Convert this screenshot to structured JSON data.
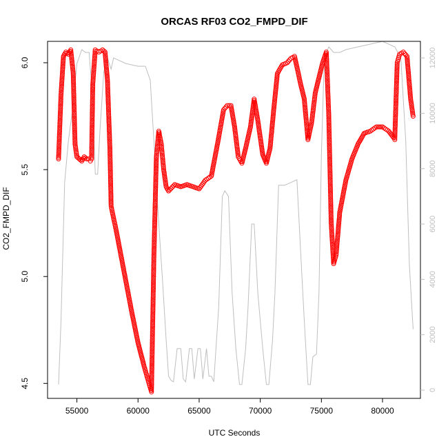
{
  "chart_data": {
    "type": "scatter",
    "title": "ORCAS RF03 CO2_FMPD_DIF",
    "xlabel": "UTC Seconds",
    "ylabel": "CO2_FMPD_DIF",
    "xlim": [
      52600,
      83100
    ],
    "ylim": [
      4.43,
      6.1
    ],
    "y2lim": [
      -300,
      12600
    ],
    "x_ticks": [
      55000,
      60000,
      65000,
      70000,
      75000,
      80000
    ],
    "y_ticks": [
      4.5,
      5.0,
      5.5,
      6.0
    ],
    "y2_ticks": [
      0,
      2000,
      4000,
      6000,
      8000,
      10000,
      12000
    ],
    "colors": {
      "points": "#ff0000",
      "altitude_line": "#bebebe",
      "axes": "#000000",
      "right_axis": "#bebebe"
    },
    "series": [
      {
        "style": "points",
        "axis": "left",
        "x": [
          53500,
          53700,
          53900,
          54100,
          54300,
          54500,
          54700,
          54850,
          55000,
          55200,
          55400,
          55600,
          55800,
          55950,
          56100,
          56200,
          56300,
          56500,
          56800,
          57100,
          57300,
          57500,
          57700,
          57800,
          57900,
          58200,
          58600,
          59000,
          59500,
          60000,
          60500,
          60900,
          61100,
          61300,
          61500,
          61700,
          61900,
          62100,
          62300,
          62500,
          63000,
          63500,
          64000,
          64500,
          65000,
          65500,
          66000,
          66500,
          67000,
          67300,
          67600,
          67900,
          68200,
          68500,
          68800,
          69200,
          69500,
          69800,
          70200,
          70500,
          70800,
          71100,
          71400,
          71800,
          72200,
          72500,
          72800,
          73000,
          73300,
          73600,
          73900,
          74200,
          74500,
          74800,
          75100,
          75400,
          75600,
          75800,
          76000,
          76200,
          76500,
          77000,
          77500,
          78000,
          78500,
          79000,
          79500,
          80000,
          80500,
          80900,
          81000,
          81200,
          81400,
          81700,
          82000,
          82300,
          82500
        ],
        "y": [
          5.55,
          5.85,
          6.03,
          6.05,
          6.04,
          6.06,
          5.95,
          5.62,
          5.56,
          5.55,
          5.54,
          5.56,
          5.55,
          5.55,
          5.54,
          5.55,
          5.9,
          6.06,
          6.05,
          6.06,
          6.05,
          5.92,
          5.6,
          5.33,
          5.3,
          5.22,
          5.1,
          4.98,
          4.83,
          4.69,
          4.58,
          4.5,
          4.46,
          5.1,
          5.56,
          5.68,
          5.62,
          5.5,
          5.42,
          5.4,
          5.43,
          5.42,
          5.43,
          5.42,
          5.41,
          5.45,
          5.47,
          5.62,
          5.78,
          5.8,
          5.8,
          5.7,
          5.56,
          5.53,
          5.6,
          5.7,
          5.83,
          5.73,
          5.57,
          5.53,
          5.6,
          5.78,
          5.95,
          5.99,
          6.0,
          6.02,
          6.03,
          5.98,
          5.9,
          5.83,
          5.64,
          5.72,
          5.86,
          5.93,
          6.0,
          6.05,
          5.76,
          5.25,
          5.06,
          5.1,
          5.3,
          5.45,
          5.55,
          5.62,
          5.67,
          5.68,
          5.7,
          5.7,
          5.68,
          5.65,
          5.64,
          6.0,
          6.04,
          6.05,
          6.03,
          5.83,
          5.75
        ]
      },
      {
        "style": "line",
        "axis": "right",
        "x": [
          53500,
          53700,
          54000,
          54300,
          54600,
          55000,
          55400,
          55700,
          56000,
          56300,
          56500,
          56700,
          56900,
          57200,
          57500,
          57800,
          58000,
          59000,
          60000,
          60600,
          61000,
          61300,
          61700,
          62000,
          62300,
          62500,
          62700,
          62900,
          63200,
          63500,
          63700,
          63900,
          64200,
          64400,
          64600,
          64900,
          65100,
          65300,
          65600,
          65800,
          66000,
          66200,
          66600,
          66900,
          67100,
          67400,
          67700,
          68000,
          68300,
          68500,
          68800,
          69000,
          69300,
          69500,
          69800,
          70200,
          70500,
          70700,
          71000,
          71200,
          71500,
          72000,
          72500,
          73000,
          73300,
          73600,
          73900,
          74100,
          74300,
          74600,
          74800,
          75000,
          75200,
          75400,
          75600,
          75800,
          76000,
          76500,
          77000,
          78000,
          79000,
          80000,
          81000,
          81500,
          81900,
          82200,
          82500
        ],
        "y": [
          200,
          2500,
          7500,
          9000,
          10000,
          11800,
          12300,
          12200,
          12200,
          10500,
          7800,
          7800,
          9500,
          11500,
          12000,
          11600,
          12000,
          11800,
          11700,
          11700,
          11200,
          9000,
          6000,
          4000,
          1800,
          500,
          350,
          300,
          1500,
          1500,
          400,
          300,
          1500,
          1500,
          400,
          1500,
          1500,
          400,
          1500,
          500,
          500,
          300,
          3000,
          7000,
          7200,
          7000,
          3500,
          1500,
          200,
          200,
          1500,
          3000,
          6000,
          6000,
          3500,
          1500,
          200,
          200,
          1800,
          3500,
          7400,
          7400,
          7500,
          7600,
          5000,
          2500,
          200,
          200,
          1200,
          1300,
          3500,
          8500,
          11500,
          12200,
          12400,
          12300,
          12200,
          12200,
          12300,
          12400,
          12500,
          12600,
          12400,
          12000,
          9000,
          4500,
          2200
        ]
      }
    ]
  }
}
